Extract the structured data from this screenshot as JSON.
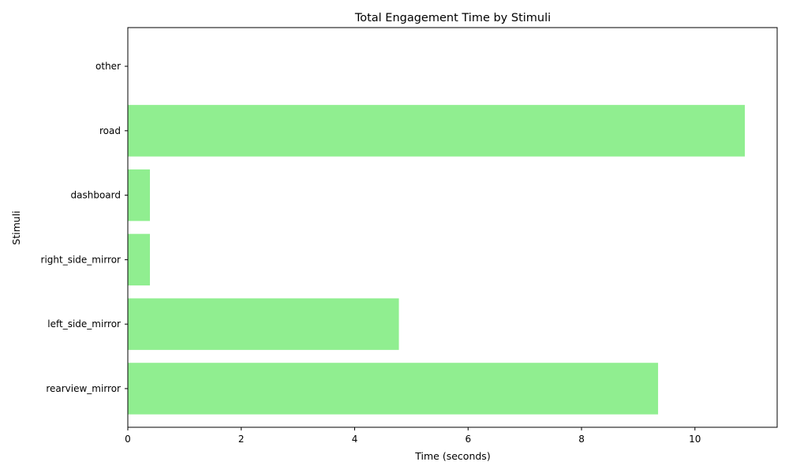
{
  "chart_data": {
    "type": "bar",
    "orientation": "horizontal",
    "title": "Total Engagement Time by Stimuli",
    "xlabel": "Time (seconds)",
    "ylabel": "Stimuli",
    "xlim": [
      0,
      11.45
    ],
    "x_ticks": [
      0,
      2,
      4,
      6,
      8,
      10
    ],
    "grid": false,
    "bar_color": "#90EE90",
    "categories": [
      "rearview_mirror",
      "left_side_mirror",
      "right_side_mirror",
      "dashboard",
      "road",
      "other"
    ],
    "values": [
      9.35,
      4.78,
      0.39,
      0.39,
      10.88,
      0
    ]
  }
}
